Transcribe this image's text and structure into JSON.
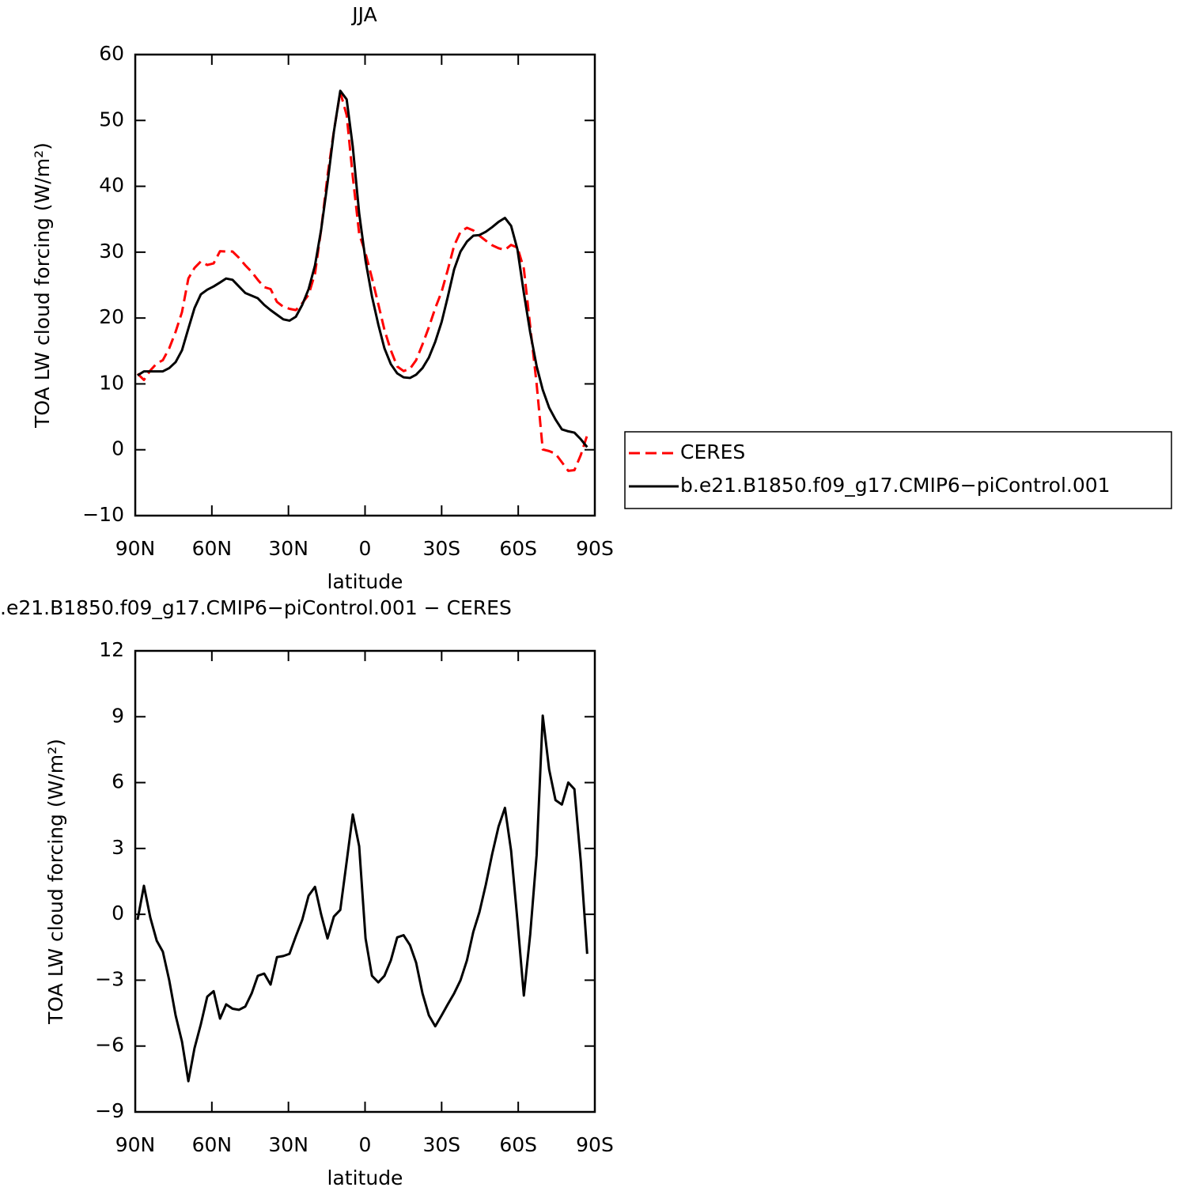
{
  "chart_data": [
    {
      "type": "line",
      "title": "JJA",
      "xlabel": "latitude",
      "ylabel": "TOA LW cloud forcing (W/m²)",
      "xlim": [
        90,
        -90
      ],
      "xticks": [
        {
          "value": 90,
          "label": "90N"
        },
        {
          "value": 60,
          "label": "60N"
        },
        {
          "value": 30,
          "label": "30N"
        },
        0,
        {
          "value": -30,
          "label": "30S"
        },
        {
          "value": -60,
          "label": "60S"
        },
        {
          "value": -90,
          "label": "90S"
        }
      ],
      "ylim": [
        -10,
        60
      ],
      "yticks": [
        {
          "value": -10,
          "label": "−10"
        },
        0,
        10,
        20,
        30,
        40,
        50,
        60
      ],
      "legend": "right",
      "x": [
        89.1,
        86.6,
        84.1,
        81.6,
        79.2,
        76.7,
        74.2,
        71.7,
        69.2,
        66.8,
        64.3,
        61.8,
        59.3,
        56.8,
        54.4,
        51.9,
        49.4,
        46.9,
        44.4,
        42.0,
        39.5,
        37.0,
        34.5,
        32.0,
        29.6,
        27.1,
        24.6,
        22.1,
        19.6,
        17.2,
        14.7,
        12.2,
        9.7,
        7.2,
        4.8,
        2.3,
        -0.2,
        -2.7,
        -5.2,
        -7.6,
        -10.1,
        -12.6,
        -15.1,
        -17.6,
        -20.0,
        -22.5,
        -25.0,
        -27.5,
        -30.0,
        -32.4,
        -34.9,
        -37.4,
        -39.9,
        -42.4,
        -44.8,
        -47.3,
        -49.8,
        -52.3,
        -54.8,
        -57.2,
        -59.7,
        -62.2,
        -64.7,
        -67.2,
        -69.6,
        -72.1,
        -74.6,
        -77.1,
        -79.6,
        -82.0,
        -84.5,
        -87.0
      ],
      "series": [
        {
          "name": "CERES",
          "color": "#ff0000",
          "line_style": "dashed",
          "values": [
            11.55,
            10.6,
            12.05,
            13.1,
            13.6,
            15.4,
            17.9,
            20.9,
            26.0,
            27.6,
            28.6,
            28.05,
            28.3,
            30.15,
            30.1,
            30.1,
            29.15,
            28.0,
            27.0,
            25.8,
            24.7,
            24.4,
            22.45,
            21.7,
            21.4,
            21.2,
            22.25,
            23.55,
            26.75,
            33.4,
            41.6,
            48.4,
            54.3,
            50.8,
            41.45,
            32.8,
            29.8,
            26.1,
            22.1,
            18.2,
            15.1,
            12.65,
            11.95,
            12.3,
            13.6,
            16.0,
            18.6,
            21.5,
            24.0,
            27.3,
            31.0,
            33.1,
            33.7,
            33.3,
            32.5,
            31.75,
            31.05,
            30.6,
            30.35,
            31.1,
            30.7,
            27.5,
            18.7,
            10.0,
            0.05,
            -0.2,
            -0.6,
            -1.9,
            -3.2,
            -3.1,
            -0.8,
            2.2
          ]
        },
        {
          "name": "b.e21.B1850.f09_g17.CMIP6−piControl.001",
          "color": "#000000",
          "line_style": "solid",
          "values": [
            11.3,
            11.9,
            11.9,
            11.9,
            11.9,
            12.4,
            13.3,
            15.1,
            18.4,
            21.5,
            23.6,
            24.3,
            24.8,
            25.4,
            26,
            25.8,
            24.8,
            23.8,
            23.4,
            23,
            22,
            21.2,
            20.5,
            19.8,
            19.6,
            20.2,
            22,
            24.4,
            28,
            33.4,
            40.5,
            48.3,
            54.5,
            53.2,
            46,
            35.9,
            28.7,
            23.3,
            19,
            15.4,
            13,
            11.6,
            11,
            10.9,
            11.4,
            12.4,
            14,
            16.4,
            19.4,
            23.2,
            27.4,
            30.1,
            31.6,
            32.5,
            32.6,
            33.1,
            33.8,
            34.6,
            35.2,
            34,
            30.4,
            23.8,
            17.8,
            12.7,
            9.1,
            6.4,
            4.6,
            3.1,
            2.8,
            2.6,
            1.6,
            0.4
          ]
        }
      ]
    },
    {
      "type": "line",
      "title": ".e21.B1850.f09_g17.CMIP6−piControl.001  −  CERES",
      "xlabel": "latitude",
      "ylabel": "TOA LW cloud forcing (W/m²)",
      "xlim": [
        90,
        -90
      ],
      "xticks": [
        {
          "value": 90,
          "label": "90N"
        },
        {
          "value": 60,
          "label": "60N"
        },
        {
          "value": 30,
          "label": "30N"
        },
        0,
        {
          "value": -30,
          "label": "30S"
        },
        {
          "value": -60,
          "label": "60S"
        },
        {
          "value": -90,
          "label": "90S"
        }
      ],
      "ylim": [
        -9,
        12
      ],
      "yticks": [
        {
          "value": -9,
          "label": "−9"
        },
        {
          "value": -6,
          "label": "−6"
        },
        {
          "value": -3,
          "label": "−3"
        },
        0,
        3,
        6,
        9,
        12
      ],
      "x": [
        89.1,
        86.6,
        84.1,
        81.6,
        79.2,
        76.7,
        74.2,
        71.7,
        69.2,
        66.8,
        64.3,
        61.8,
        59.3,
        56.8,
        54.4,
        51.9,
        49.4,
        46.9,
        44.4,
        42.0,
        39.5,
        37.0,
        34.5,
        32.0,
        29.6,
        27.1,
        24.6,
        22.1,
        19.6,
        17.2,
        14.7,
        12.2,
        9.7,
        7.2,
        4.8,
        2.3,
        -0.2,
        -2.7,
        -5.2,
        -7.6,
        -10.1,
        -12.6,
        -15.1,
        -17.6,
        -20.0,
        -22.5,
        -25.0,
        -27.5,
        -30.0,
        -32.4,
        -34.9,
        -37.4,
        -39.9,
        -42.4,
        -44.8,
        -47.3,
        -49.8,
        -52.3,
        -54.8,
        -57.2,
        -59.7,
        -62.2,
        -64.7,
        -67.2,
        -69.6,
        -72.1,
        -74.6,
        -77.1,
        -79.6,
        -82.0,
        -84.5,
        -87.0
      ],
      "series": [
        {
          "color": "#000000",
          "line_style": "solid",
          "values": [
            -0.25,
            1.3,
            -0.15,
            -1.2,
            -1.7,
            -3,
            -4.6,
            -5.8,
            -7.6,
            -6.1,
            -5,
            -3.75,
            -3.5,
            -4.75,
            -4.1,
            -4.3,
            -4.35,
            -4.2,
            -3.6,
            -2.8,
            -2.7,
            -3.2,
            -1.95,
            -1.9,
            -1.8,
            -1,
            -0.25,
            0.85,
            1.25,
            0,
            -1.1,
            -0.1,
            0.2,
            2.4,
            4.55,
            3.1,
            -1.1,
            -2.8,
            -3.1,
            -2.8,
            -2.1,
            -1.05,
            -0.95,
            -1.4,
            -2.2,
            -3.6,
            -4.6,
            -5.1,
            -4.6,
            -4.1,
            -3.6,
            -3,
            -2.1,
            -0.8,
            0.1,
            1.35,
            2.75,
            4,
            4.85,
            2.9,
            -0.3,
            -3.7,
            -0.9,
            2.7,
            9.05,
            6.6,
            5.2,
            5,
            6,
            5.7,
            2.4,
            -1.8
          ]
        }
      ]
    }
  ]
}
